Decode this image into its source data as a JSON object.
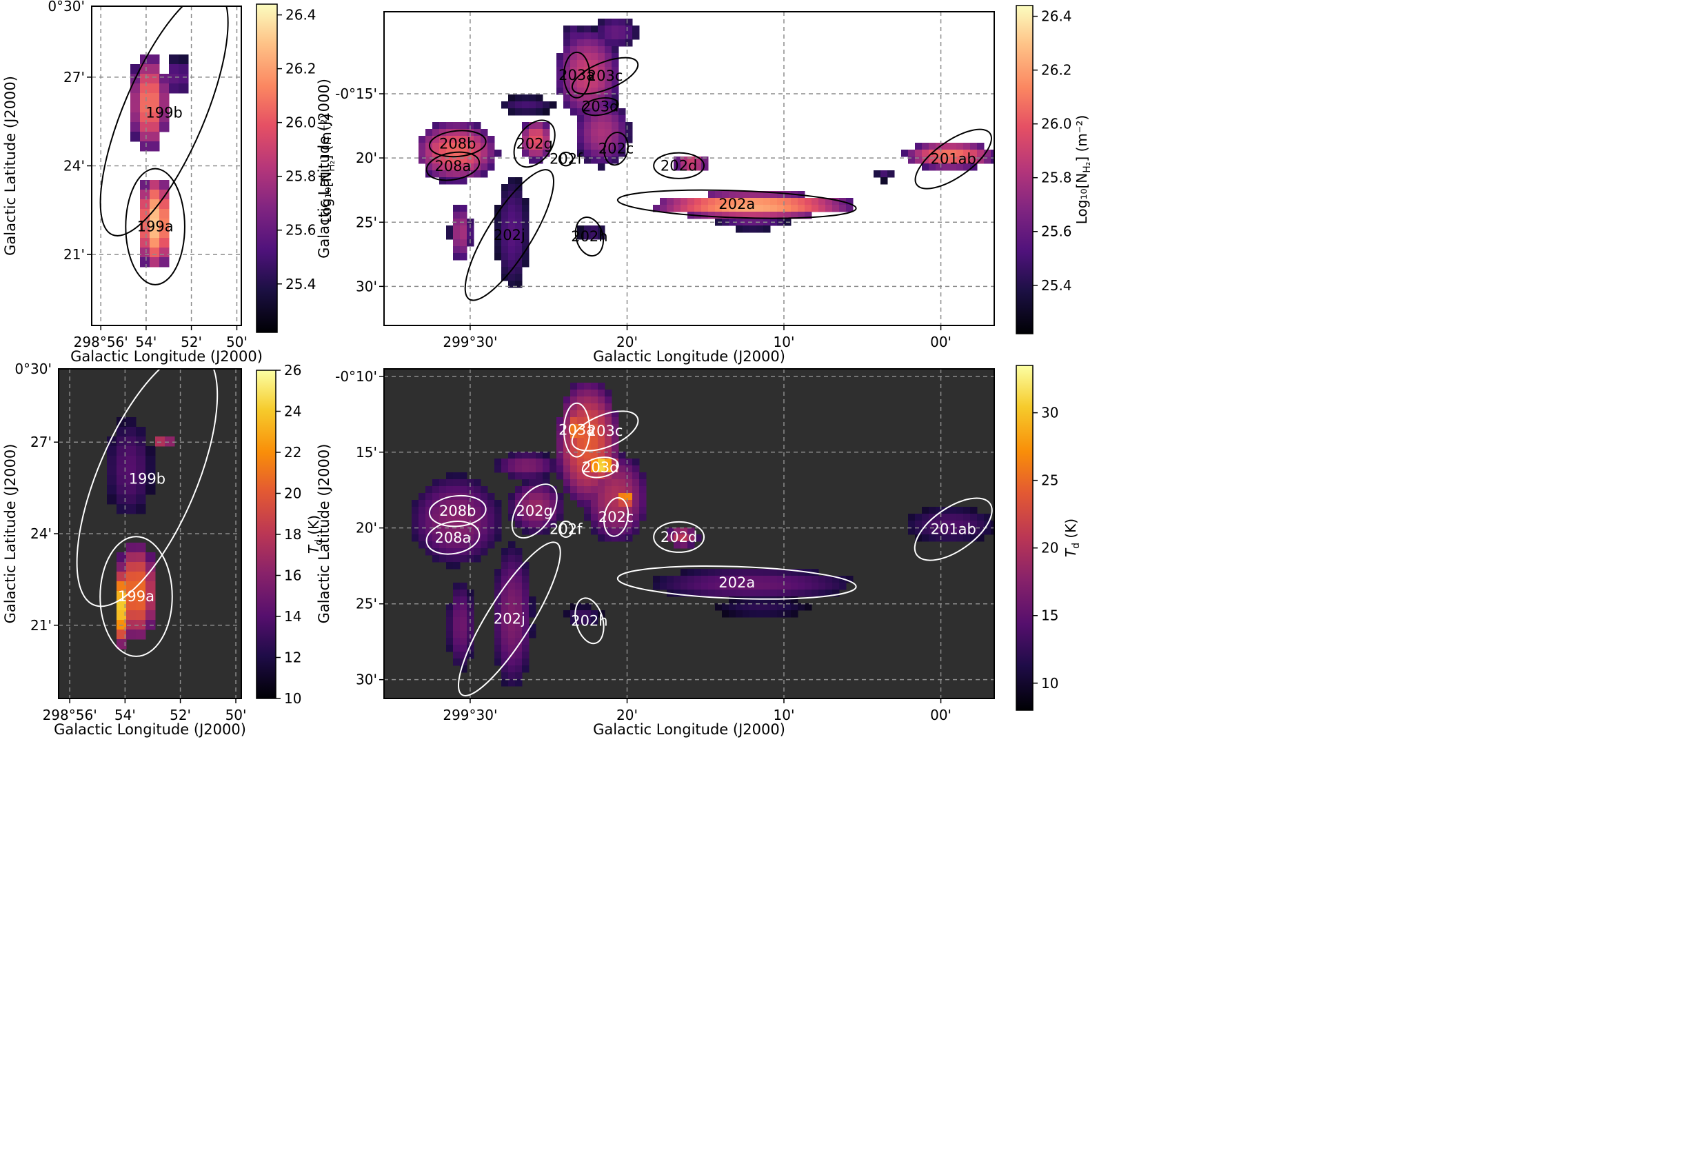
{
  "figure": {
    "description_colorbar_nh2": "Log10[N_H2] (m^-2)"
  },
  "colors": {
    "frame": "#000000",
    "dark_bg": "#2f2f2f",
    "grid": "#8c8c8c",
    "contour_top": "#000000",
    "contour_bottom": "#ffffff"
  },
  "chart_data": [
    {
      "id": "nh2-small",
      "type": "heatmap",
      "xlabel": "Galactic Longitude (J2000)",
      "ylabel": "Galactic Latitude (J2000)",
      "xlim": [
        298.94,
        298.83
      ],
      "ylim": [
        0.31,
        0.49
      ],
      "xticks": [
        {
          "v": 298.9333,
          "label": "298°56'"
        },
        {
          "v": 298.9,
          "label": "54'"
        },
        {
          "v": 298.8667,
          "label": "52'"
        },
        {
          "v": 298.8333,
          "label": "50'"
        }
      ],
      "yticks": [
        {
          "v": 0.5,
          "label": "0°30'"
        },
        {
          "v": 0.45,
          "label": "27'"
        },
        {
          "v": 0.4,
          "label": "24'"
        },
        {
          "v": 0.35,
          "label": "21'"
        }
      ],
      "colorbar": {
        "label": "Log₁₀[N",
        "label_sub": "H₂",
        "label_end": "] (m⁻²)",
        "range": [
          25.22,
          26.44
        ],
        "ticks": [
          "25.4",
          "25.6",
          "25.8",
          "26.0",
          "26.2",
          "26.4"
        ],
        "tick_values": [
          25.4,
          25.6,
          25.8,
          26.0,
          26.2,
          26.4
        ],
        "colormap": "magma"
      },
      "regions": [
        {
          "name": "199a",
          "l": 298.8933,
          "b": 0.3657,
          "rx": 0.0217,
          "ry": 0.0327,
          "angle": 0
        },
        {
          "name": "199b",
          "l": 298.8867,
          "b": 0.43,
          "rx": 0.0297,
          "ry": 0.0748,
          "angle": 23
        }
      ],
      "emission": [
        {
          "l": 298.8933,
          "b": 0.368,
          "rl": 0.0133,
          "rb": 0.028,
          "peak": 26.3
        },
        {
          "l": 298.8975,
          "b": 0.4355,
          "rl": 0.0145,
          "rb": 0.028,
          "peak": 26.1
        },
        {
          "l": 298.8767,
          "b": 0.45,
          "rl": 0.009,
          "rb": 0.012,
          "peak": 25.6
        }
      ]
    },
    {
      "id": "nh2-large",
      "type": "heatmap",
      "xlabel": "Galactic Longitude (J2000)",
      "ylabel": "Galactic Latitude (J2000)",
      "xlim": [
        299.5915,
        298.9433
      ],
      "ylim": [
        -0.5507,
        -0.1435
      ],
      "xticks": [
        {
          "v": 299.5,
          "label": "299°30'"
        },
        {
          "v": 299.3333,
          "label": "20'"
        },
        {
          "v": 299.1667,
          "label": "10'"
        },
        {
          "v": 299.0,
          "label": "00'"
        }
      ],
      "yticks": [
        {
          "v": -0.25,
          "label": "-0°15'"
        },
        {
          "v": -0.3333,
          "label": "20'"
        },
        {
          "v": -0.4167,
          "label": "25'"
        },
        {
          "v": -0.5,
          "label": "30'"
        }
      ],
      "colorbar": {
        "label": "Log₁₀[N",
        "label_sub": "H₂",
        "label_end": "] (m⁻²)",
        "range": [
          25.22,
          26.44
        ],
        "ticks": [
          "25.4",
          "25.6",
          "25.8",
          "26.0",
          "26.2",
          "26.4"
        ],
        "tick_values": [
          25.4,
          25.6,
          25.8,
          26.0,
          26.2,
          26.4
        ],
        "colormap": "magma"
      },
      "regions": [
        {
          "name": "203a",
          "l": 299.3867,
          "b": -0.2257,
          "rx": 0.0137,
          "ry": 0.0295,
          "angle": 0
        },
        {
          "name": "203c",
          "l": 299.3567,
          "b": -0.2267,
          "rx": 0.0372,
          "ry": 0.0175,
          "angle": -22
        },
        {
          "name": "203d",
          "l": 299.3617,
          "b": -0.2667,
          "rx": 0.0192,
          "ry": 0.0107,
          "angle": -10
        },
        {
          "name": "202g",
          "l": 299.4317,
          "b": -0.3147,
          "rx": 0.0182,
          "ry": 0.0335,
          "angle": 35
        },
        {
          "name": "208b",
          "l": 299.5133,
          "b": -0.3147,
          "rx": 0.03,
          "ry": 0.0167,
          "angle": -5
        },
        {
          "name": "208a",
          "l": 299.5183,
          "b": -0.344,
          "rx": 0.0283,
          "ry": 0.0175,
          "angle": -10
        },
        {
          "name": "202f",
          "l": 299.3983,
          "b": -0.3347,
          "rx": 0.0072,
          "ry": 0.0087,
          "angle": 0
        },
        {
          "name": "202c",
          "l": 299.345,
          "b": -0.3213,
          "rx": 0.0125,
          "ry": 0.0213,
          "angle": 10
        },
        {
          "name": "202d",
          "l": 299.2783,
          "b": -0.3433,
          "rx": 0.0267,
          "ry": 0.0167,
          "angle": 0
        },
        {
          "name": "202a",
          "l": 299.2167,
          "b": -0.3933,
          "rx": 0.1267,
          "ry": 0.0175,
          "angle": 2
        },
        {
          "name": "202j",
          "l": 299.4583,
          "b": -0.4333,
          "rx": 0.0233,
          "ry": 0.0983,
          "angle": 32
        },
        {
          "name": "202h",
          "l": 299.3733,
          "b": -0.4353,
          "rx": 0.0142,
          "ry": 0.0255,
          "angle": -15
        },
        {
          "name": "201ab",
          "l": 298.9867,
          "b": -0.3347,
          "rx": 0.0475,
          "ry": 0.0235,
          "angle": -35
        }
      ],
      "emission": [
        {
          "l": 299.375,
          "b": -0.225,
          "rl": 0.035,
          "rb": 0.06,
          "peak": 25.9
        },
        {
          "l": 299.345,
          "b": -0.17,
          "rl": 0.025,
          "rb": 0.022,
          "peak": 25.6
        },
        {
          "l": 299.39,
          "b": -0.175,
          "rl": 0.012,
          "rb": 0.018,
          "peak": 25.55
        },
        {
          "l": 299.36,
          "b": -0.3,
          "rl": 0.03,
          "rb": 0.045,
          "peak": 25.8
        },
        {
          "l": 299.43,
          "b": -0.31,
          "rl": 0.018,
          "rb": 0.028,
          "peak": 26.0
        },
        {
          "l": 299.515,
          "b": -0.325,
          "rl": 0.045,
          "rb": 0.04,
          "peak": 26.05
        },
        {
          "l": 299.44,
          "b": -0.265,
          "rl": 0.03,
          "rb": 0.012,
          "peak": 25.5
        },
        {
          "l": 299.265,
          "b": -0.34,
          "rl": 0.02,
          "rb": 0.012,
          "peak": 25.95
        },
        {
          "l": 299.2,
          "b": -0.395,
          "rl": 0.11,
          "rb": 0.017,
          "peak": 26.25
        },
        {
          "l": 299.2,
          "b": -0.415,
          "rl": 0.04,
          "rb": 0.012,
          "peak": 25.6
        },
        {
          "l": 299.455,
          "b": -0.43,
          "rl": 0.018,
          "rb": 0.075,
          "peak": 25.55
        },
        {
          "l": 299.51,
          "b": -0.43,
          "rl": 0.012,
          "rb": 0.04,
          "peak": 25.8
        },
        {
          "l": 299.37,
          "b": -0.43,
          "rl": 0.015,
          "rb": 0.01,
          "peak": 25.5
        },
        {
          "l": 298.99,
          "b": -0.33,
          "rl": 0.05,
          "rb": 0.018,
          "peak": 26.1
        },
        {
          "l": 299.06,
          "b": -0.355,
          "rl": 0.01,
          "rb": 0.008,
          "peak": 25.5
        }
      ]
    },
    {
      "id": "td-small",
      "type": "heatmap",
      "xlabel": "Galactic Longitude (J2000)",
      "ylabel": "Galactic Latitude (J2000)",
      "xlim": [
        298.94,
        298.83
      ],
      "ylim": [
        0.31,
        0.49
      ],
      "xticks": [
        {
          "v": 298.9333,
          "label": "298°56'"
        },
        {
          "v": 298.9,
          "label": "54'"
        },
        {
          "v": 298.8667,
          "label": "52'"
        },
        {
          "v": 298.8333,
          "label": "50'"
        }
      ],
      "yticks": [
        {
          "v": 0.5,
          "label": "0°30'"
        },
        {
          "v": 0.45,
          "label": "27'"
        },
        {
          "v": 0.4,
          "label": "24'"
        },
        {
          "v": 0.35,
          "label": "21'"
        }
      ],
      "colorbar": {
        "label": "T",
        "label_sub": "d",
        "label_end": " (K)",
        "range": [
          10,
          26
        ],
        "ticks": [
          "10",
          "12",
          "14",
          "16",
          "18",
          "20",
          "22",
          "24",
          "26"
        ],
        "tick_values": [
          10,
          12,
          14,
          16,
          18,
          20,
          22,
          24,
          26
        ],
        "colormap": "inferno"
      },
      "regions": [
        {
          "name": "199a",
          "l": 298.8933,
          "b": 0.3657,
          "rx": 0.0217,
          "ry": 0.0327,
          "angle": 0
        },
        {
          "name": "199b",
          "l": 298.8867,
          "b": 0.43,
          "rx": 0.0297,
          "ry": 0.0748,
          "angle": 23
        }
      ],
      "emission": [
        {
          "l": 298.8933,
          "b": 0.368,
          "rl": 0.0133,
          "rb": 0.028,
          "peak": 21
        },
        {
          "l": 298.902,
          "b": 0.36,
          "rl": 0.005,
          "rb": 0.022,
          "peak": 24
        },
        {
          "l": 298.8975,
          "b": 0.4355,
          "rl": 0.0145,
          "rb": 0.028,
          "peak": 14
        },
        {
          "l": 298.8767,
          "b": 0.452,
          "rl": 0.006,
          "rb": 0.004,
          "peak": 19.5
        }
      ]
    },
    {
      "id": "td-large",
      "type": "heatmap",
      "xlabel": "Galactic Longitude (J2000)",
      "ylabel": "Galactic Latitude (J2000)",
      "xlim": [
        299.5915,
        298.9433
      ],
      "ylim": [
        -0.5207,
        -0.1585
      ],
      "xticks": [
        {
          "v": 299.5,
          "label": "299°30'"
        },
        {
          "v": 299.3333,
          "label": "20'"
        },
        {
          "v": 299.1667,
          "label": "10'"
        },
        {
          "v": 299.0,
          "label": "00'"
        }
      ],
      "yticks": [
        {
          "v": -0.1667,
          "label": "-0°10'"
        },
        {
          "v": -0.25,
          "label": "15'"
        },
        {
          "v": -0.3333,
          "label": "20'"
        },
        {
          "v": -0.4167,
          "label": "25'"
        },
        {
          "v": -0.5,
          "label": "30'"
        }
      ],
      "colorbar": {
        "label": "T",
        "label_sub": "d",
        "label_end": " (K)",
        "range": [
          8,
          33.5
        ],
        "ticks": [
          "10",
          "15",
          "20",
          "25",
          "30"
        ],
        "tick_values": [
          10,
          15,
          20,
          25,
          30
        ],
        "colormap": "inferno"
      },
      "regions": [
        {
          "name": "203a",
          "l": 299.3867,
          "b": -0.2257,
          "rx": 0.0137,
          "ry": 0.0295,
          "angle": 0
        },
        {
          "name": "203c",
          "l": 299.3567,
          "b": -0.2267,
          "rx": 0.0372,
          "ry": 0.0175,
          "angle": -22
        },
        {
          "name": "203d",
          "l": 299.3617,
          "b": -0.2667,
          "rx": 0.0192,
          "ry": 0.0107,
          "angle": -10
        },
        {
          "name": "202g",
          "l": 299.4317,
          "b": -0.3147,
          "rx": 0.0182,
          "ry": 0.0335,
          "angle": 35
        },
        {
          "name": "208b",
          "l": 299.5133,
          "b": -0.3147,
          "rx": 0.03,
          "ry": 0.0167,
          "angle": -5
        },
        {
          "name": "208a",
          "l": 299.5183,
          "b": -0.344,
          "rx": 0.0283,
          "ry": 0.0175,
          "angle": -10
        },
        {
          "name": "202f",
          "l": 299.3983,
          "b": -0.3347,
          "rx": 0.0072,
          "ry": 0.0087,
          "angle": 0
        },
        {
          "name": "202c",
          "l": 299.345,
          "b": -0.3213,
          "rx": 0.0125,
          "ry": 0.0213,
          "angle": 10
        },
        {
          "name": "202d",
          "l": 299.2783,
          "b": -0.3433,
          "rx": 0.0267,
          "ry": 0.0167,
          "angle": 0
        },
        {
          "name": "202a",
          "l": 299.2167,
          "b": -0.3933,
          "rx": 0.1267,
          "ry": 0.0175,
          "angle": 2
        },
        {
          "name": "202j",
          "l": 299.4583,
          "b": -0.4333,
          "rx": 0.0233,
          "ry": 0.0983,
          "angle": 32
        },
        {
          "name": "202h",
          "l": 299.3733,
          "b": -0.4353,
          "rx": 0.0142,
          "ry": 0.0255,
          "angle": -15
        },
        {
          "name": "201ab",
          "l": 298.9867,
          "b": -0.3347,
          "rx": 0.0475,
          "ry": 0.0235,
          "angle": -35
        }
      ],
      "emission": [
        {
          "l": 299.375,
          "b": -0.24,
          "rl": 0.035,
          "rb": 0.07,
          "peak": 24
        },
        {
          "l": 299.36,
          "b": -0.265,
          "rl": 0.018,
          "rb": 0.014,
          "peak": 32
        },
        {
          "l": 299.387,
          "b": -0.225,
          "rl": 0.012,
          "rb": 0.02,
          "peak": 27
        },
        {
          "l": 299.345,
          "b": -0.3,
          "rl": 0.035,
          "rb": 0.05,
          "peak": 20
        },
        {
          "l": 299.335,
          "b": -0.3,
          "rl": 0.008,
          "rb": 0.012,
          "peak": 30
        },
        {
          "l": 299.43,
          "b": -0.31,
          "rl": 0.03,
          "rb": 0.03,
          "peak": 18.5
        },
        {
          "l": 299.515,
          "b": -0.325,
          "rl": 0.05,
          "rb": 0.05,
          "peak": 17.5
        },
        {
          "l": 299.44,
          "b": -0.265,
          "rl": 0.035,
          "rb": 0.015,
          "peak": 17
        },
        {
          "l": 299.275,
          "b": -0.343,
          "rl": 0.018,
          "rb": 0.012,
          "peak": 21
        },
        {
          "l": 299.2,
          "b": -0.395,
          "rl": 0.11,
          "rb": 0.018,
          "peak": 15.5
        },
        {
          "l": 299.19,
          "b": -0.42,
          "rl": 0.05,
          "rb": 0.012,
          "peak": 12
        },
        {
          "l": 299.455,
          "b": -0.43,
          "rl": 0.022,
          "rb": 0.08,
          "peak": 17
        },
        {
          "l": 299.51,
          "b": -0.44,
          "rl": 0.015,
          "rb": 0.05,
          "peak": 16
        },
        {
          "l": 299.38,
          "b": -0.43,
          "rl": 0.02,
          "rb": 0.012,
          "peak": 13
        },
        {
          "l": 298.99,
          "b": -0.33,
          "rl": 0.05,
          "rb": 0.02,
          "peak": 14
        }
      ]
    }
  ]
}
